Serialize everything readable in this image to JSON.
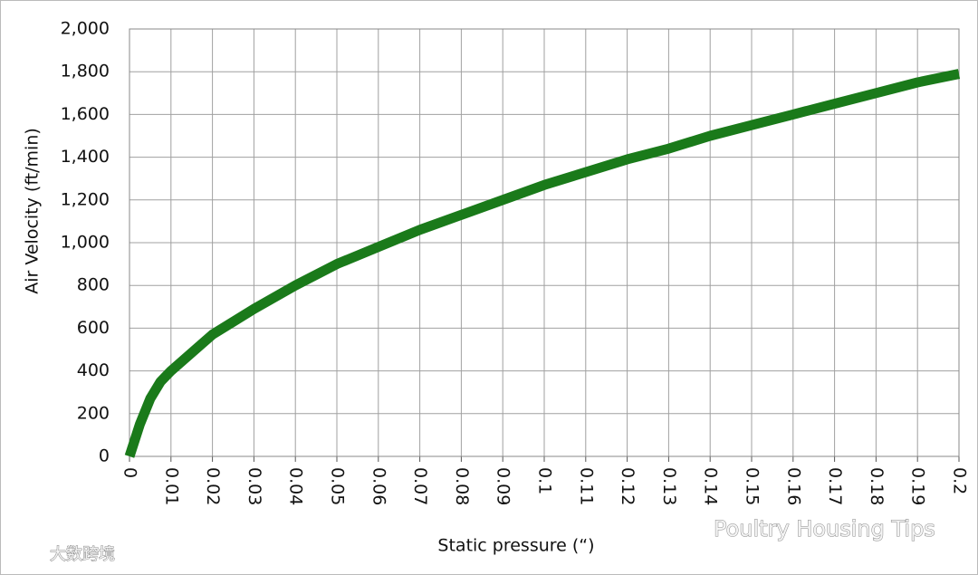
{
  "chart_data": {
    "type": "line",
    "y_label": "Air Velocity (ft/min)",
    "x_label": "Static pressure (“)",
    "x": [
      0,
      0.0025,
      0.005,
      0.0075,
      0.01,
      0.02,
      0.03,
      0.04,
      0.05,
      0.06,
      0.07,
      0.08,
      0.09,
      0.1,
      0.11,
      0.12,
      0.13,
      0.14,
      0.15,
      0.16,
      0.17,
      0.18,
      0.19,
      0.2
    ],
    "values": [
      0,
      150,
      270,
      350,
      400,
      570,
      690,
      800,
      900,
      980,
      1060,
      1130,
      1200,
      1270,
      1330,
      1390,
      1440,
      1500,
      1550,
      1600,
      1650,
      1700,
      1750,
      1790
    ],
    "color": "#1a7a1a",
    "xlim": [
      0,
      0.2
    ],
    "xticks": [
      0,
      0.01,
      0.02,
      0.03,
      0.04,
      0.05,
      0.06,
      0.07,
      0.08,
      0.09,
      0.1,
      0.11,
      0.12,
      0.13,
      0.14,
      0.15,
      0.16,
      0.17,
      0.18,
      0.19,
      0.2
    ],
    "ylim": [
      0,
      2000
    ],
    "yticks": [
      0,
      200,
      400,
      600,
      800,
      {
        "value": 1000,
        "label": "1,000"
      },
      {
        "value": 1200,
        "label": "1,200"
      },
      {
        "value": 1400,
        "label": "1,400"
      },
      {
        "value": 1600,
        "label": "1,600"
      },
      {
        "value": 1800,
        "label": "1,800"
      },
      {
        "value": 2000,
        "label": "2,000"
      }
    ],
    "grid": true
  },
  "watermarks": [
    "Poultry Housing Tips",
    "大数跨境"
  ]
}
